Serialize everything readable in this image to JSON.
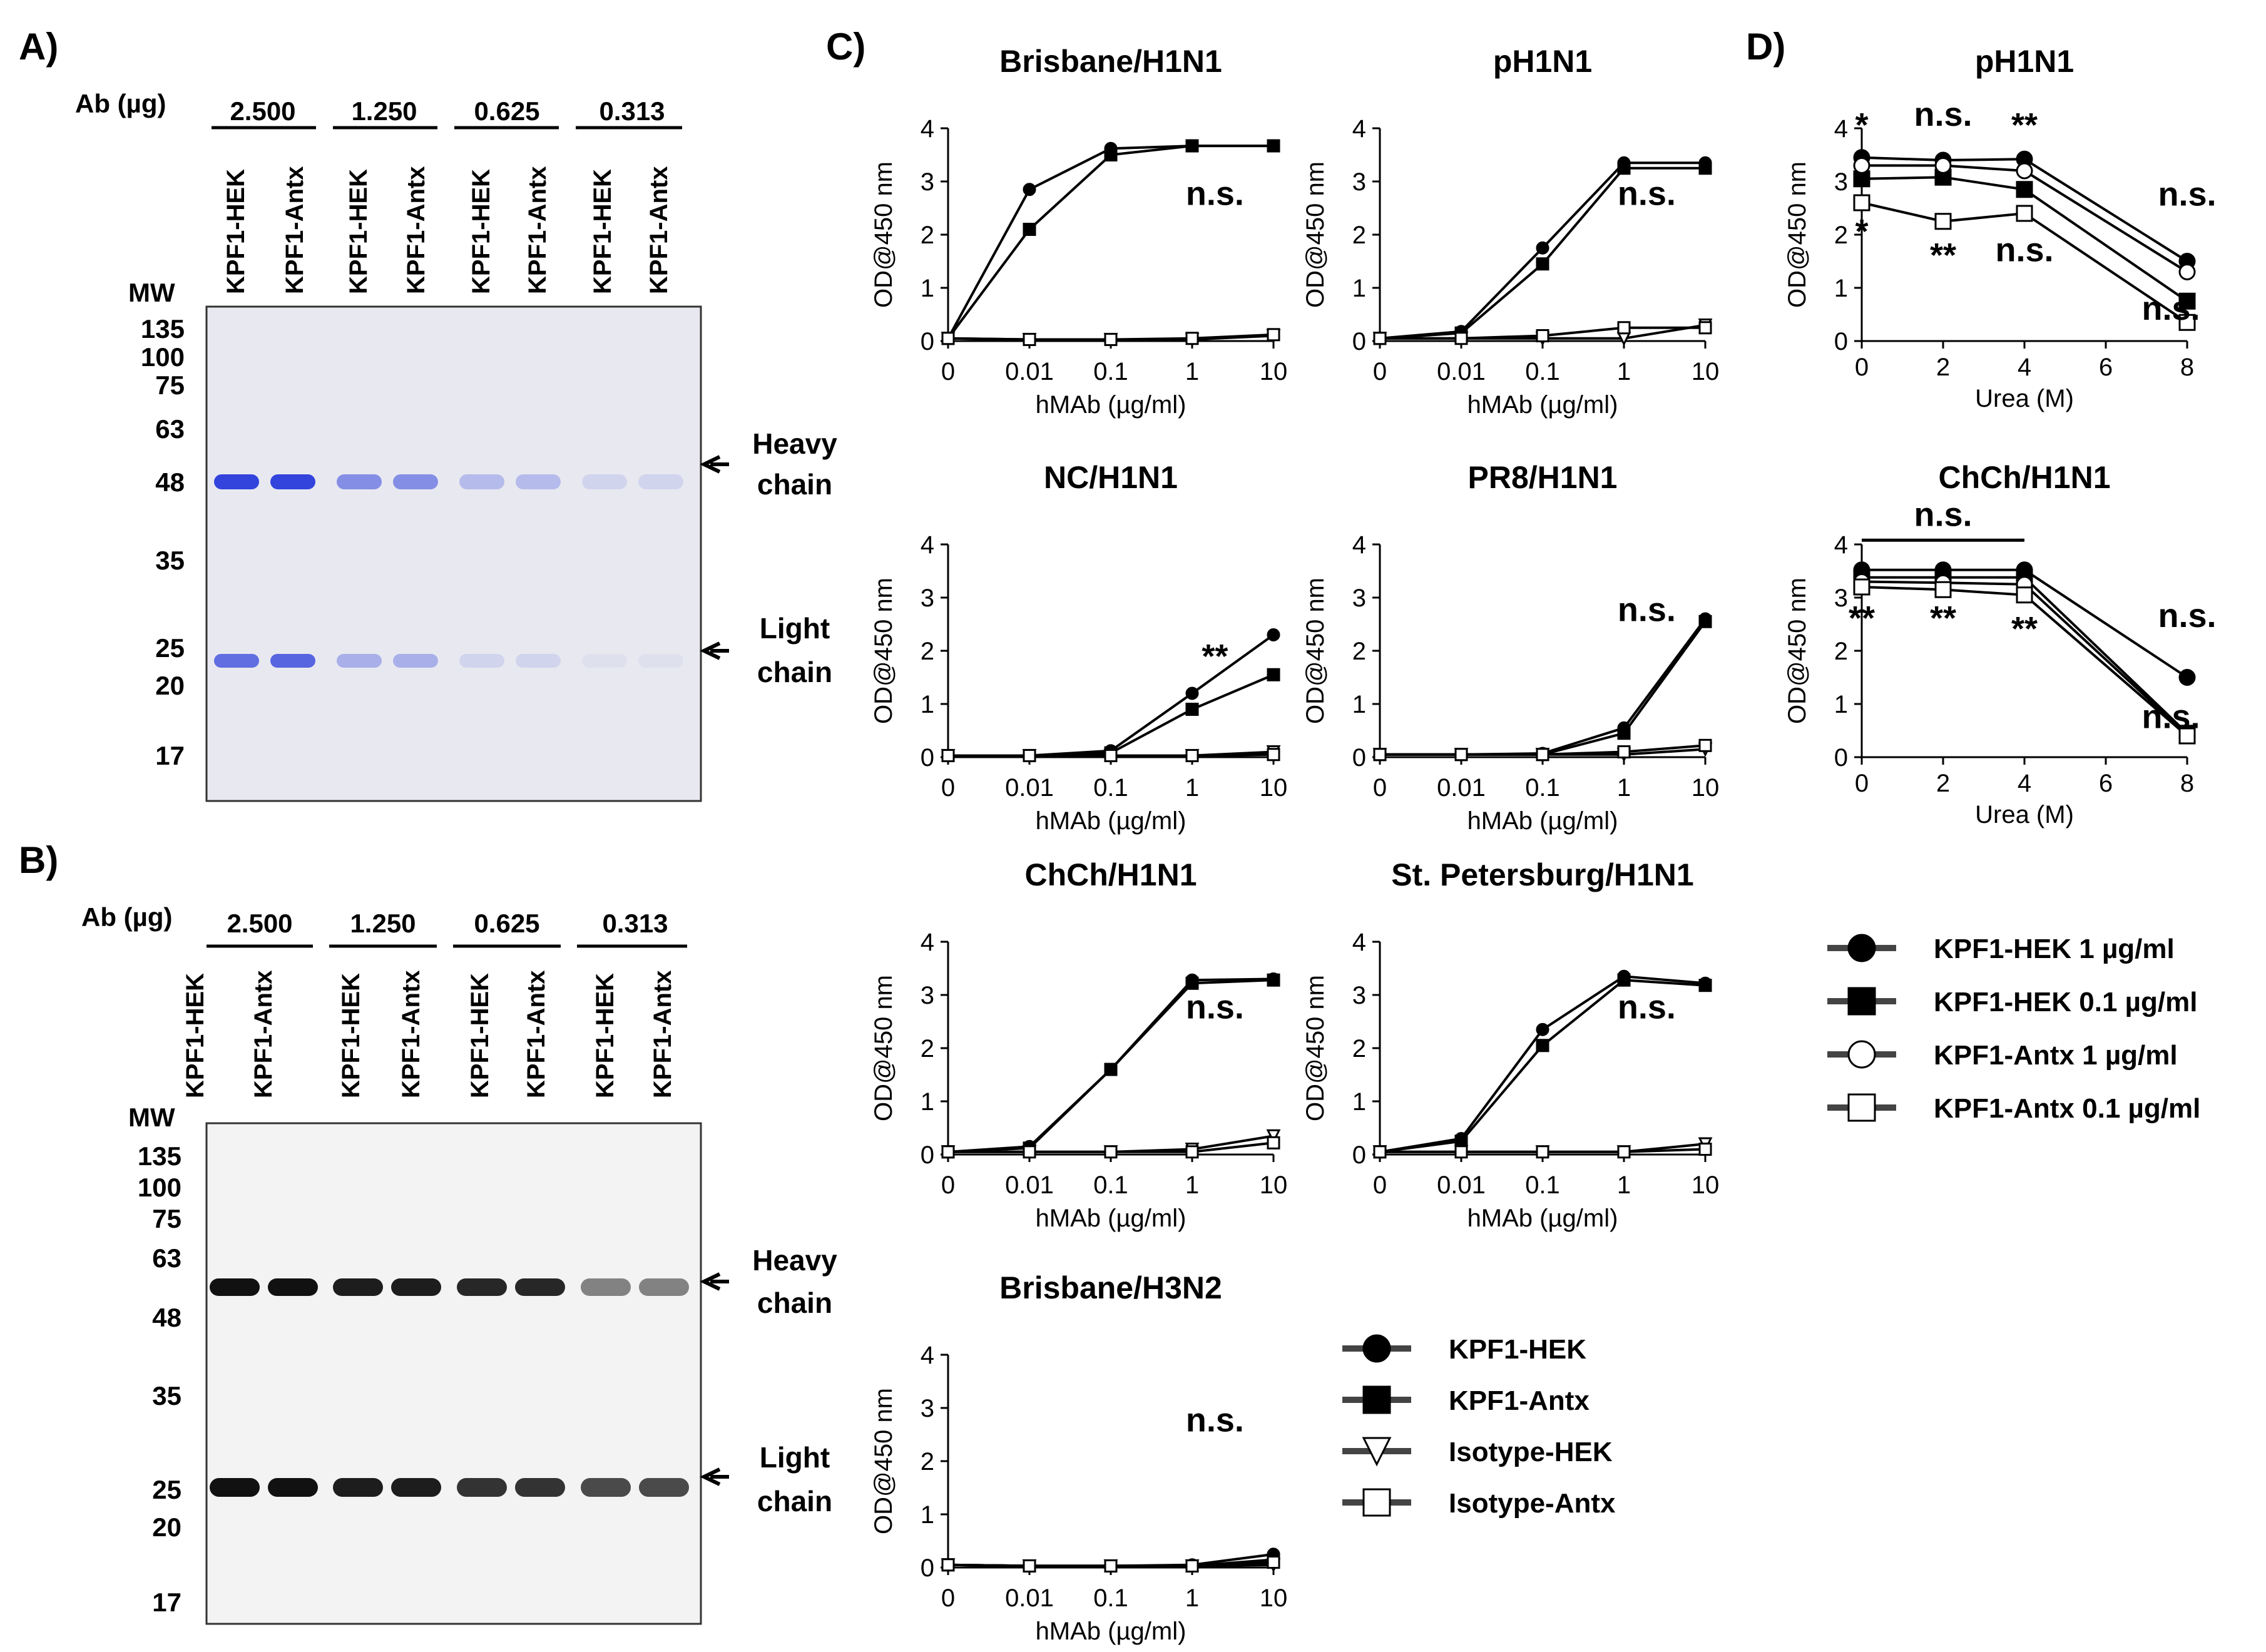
{
  "panel_labels": {
    "a": "A)",
    "b": "B)",
    "c": "C)",
    "d": "D)"
  },
  "gel_common": {
    "ab_label": "Ab (µg)",
    "mw_label": "MW",
    "doses": [
      "2.500",
      "1.250",
      "0.625",
      "0.313"
    ],
    "lanes": [
      "KPF1-HEK",
      "KPF1-Antx",
      "KPF1-HEK",
      "KPF1-Antx",
      "KPF1-HEK",
      "KPF1-Antx",
      "KPF1-HEK",
      "KPF1-Antx"
    ],
    "mw_markers": [
      "135",
      "100",
      "75",
      "63",
      "48",
      "35",
      "25",
      "20",
      "17"
    ],
    "heavy_label_1": "Heavy",
    "heavy_label_2": "chain",
    "light_label_1": "Light",
    "light_label_2": "chain"
  },
  "gel_a": {
    "band_color": "#3344dd",
    "bg_color": "#e8e9f0",
    "heavy_intensity": [
      1.0,
      1.0,
      0.55,
      0.55,
      0.28,
      0.28,
      0.12,
      0.12
    ],
    "light_intensity": [
      0.75,
      0.8,
      0.35,
      0.35,
      0.12,
      0.12,
      0.05,
      0.05
    ]
  },
  "gel_b": {
    "band_color": "#111111",
    "bg_color": "#f3f3f3",
    "heavy_intensity": [
      1.0,
      1.0,
      0.95,
      0.95,
      0.9,
      0.9,
      0.5,
      0.5
    ],
    "light_intensity": [
      1.0,
      1.0,
      0.95,
      0.95,
      0.85,
      0.85,
      0.75,
      0.75
    ]
  },
  "axis_common": {
    "ylabel": "OD@450 nm",
    "xlabel_c": "hMAb (µg/ml)",
    "xlabel_d": "Urea (M)",
    "x_ticks_c": [
      "0",
      "0.01",
      "0.1",
      "1",
      "10"
    ],
    "y_ticks": [
      "0",
      "1",
      "2",
      "3",
      "4"
    ],
    "x_ticks_d": [
      "0",
      "2",
      "4",
      "6",
      "8"
    ]
  },
  "chart_data": [
    {
      "type": "line",
      "title": "Brisbane/H1N1",
      "xlabel": "hMAb (µg/ml)",
      "ylabel": "OD@450 nm",
      "categories": [
        "0",
        "0.01",
        "0.1",
        "1",
        "10"
      ],
      "ylim": [
        0,
        4
      ],
      "series": [
        {
          "name": "KPF1-HEK",
          "values": [
            0.05,
            2.85,
            3.62,
            3.67,
            3.67
          ]
        },
        {
          "name": "KPF1-Antx",
          "values": [
            0.05,
            2.1,
            3.5,
            3.67,
            3.67
          ]
        },
        {
          "name": "Isotype-HEK",
          "values": [
            0.05,
            0.03,
            0.03,
            0.03,
            0.1
          ]
        },
        {
          "name": "Isotype-Antx",
          "values": [
            0.05,
            0.03,
            0.03,
            0.05,
            0.12
          ]
        }
      ],
      "annotations": [
        {
          "text": "n.s."
        }
      ]
    },
    {
      "type": "line",
      "title": "pH1N1",
      "xlabel": "hMAb (µg/ml)",
      "ylabel": "OD@450 nm",
      "categories": [
        "0",
        "0.01",
        "0.1",
        "1",
        "10"
      ],
      "ylim": [
        0,
        4
      ],
      "series": [
        {
          "name": "KPF1-HEK",
          "values": [
            0.05,
            0.18,
            1.75,
            3.35,
            3.35
          ]
        },
        {
          "name": "KPF1-Antx",
          "values": [
            0.05,
            0.15,
            1.45,
            3.25,
            3.25
          ]
        },
        {
          "name": "Isotype-HEK",
          "values": [
            0.05,
            0.05,
            0.05,
            0.05,
            0.3
          ]
        },
        {
          "name": "Isotype-Antx",
          "values": [
            0.05,
            0.05,
            0.1,
            0.25,
            0.25
          ]
        }
      ],
      "annotations": [
        {
          "text": "n.s."
        }
      ]
    },
    {
      "type": "line",
      "title": "NC/H1N1",
      "xlabel": "hMAb (µg/ml)",
      "ylabel": "OD@450 nm",
      "categories": [
        "0",
        "0.01",
        "0.1",
        "1",
        "10"
      ],
      "ylim": [
        0,
        4
      ],
      "series": [
        {
          "name": "KPF1-HEK",
          "values": [
            0.03,
            0.03,
            0.12,
            1.2,
            2.3
          ]
        },
        {
          "name": "KPF1-Antx",
          "values": [
            0.03,
            0.03,
            0.08,
            0.9,
            1.55
          ]
        },
        {
          "name": "Isotype-HEK",
          "values": [
            0.03,
            0.03,
            0.03,
            0.03,
            0.1
          ]
        },
        {
          "name": "Isotype-Antx",
          "values": [
            0.03,
            0.03,
            0.03,
            0.03,
            0.05
          ]
        }
      ],
      "annotations": [
        {
          "text": "**"
        }
      ]
    },
    {
      "type": "line",
      "title": "PR8/H1N1",
      "xlabel": "hMAb (µg/ml)",
      "ylabel": "OD@450 nm",
      "categories": [
        "0",
        "0.01",
        "0.1",
        "1",
        "10"
      ],
      "ylim": [
        0,
        4
      ],
      "series": [
        {
          "name": "KPF1-HEK",
          "values": [
            0.05,
            0.05,
            0.07,
            0.55,
            2.6
          ]
        },
        {
          "name": "KPF1-Antx",
          "values": [
            0.05,
            0.05,
            0.05,
            0.45,
            2.55
          ]
        },
        {
          "name": "Isotype-HEK",
          "values": [
            0.05,
            0.05,
            0.05,
            0.05,
            0.15
          ]
        },
        {
          "name": "Isotype-Antx",
          "values": [
            0.05,
            0.05,
            0.05,
            0.1,
            0.22
          ]
        }
      ],
      "annotations": [
        {
          "text": "n.s."
        }
      ]
    },
    {
      "type": "line",
      "title": "ChCh/H1N1",
      "xlabel": "hMAb (µg/ml)",
      "ylabel": "OD@450 nm",
      "categories": [
        "0",
        "0.01",
        "0.1",
        "1",
        "10"
      ],
      "ylim": [
        0,
        4
      ],
      "series": [
        {
          "name": "KPF1-HEK",
          "values": [
            0.05,
            0.15,
            1.6,
            3.28,
            3.3
          ]
        },
        {
          "name": "KPF1-Antx",
          "values": [
            0.05,
            0.12,
            1.6,
            3.22,
            3.28
          ]
        },
        {
          "name": "Isotype-HEK",
          "values": [
            0.05,
            0.05,
            0.05,
            0.1,
            0.35
          ]
        },
        {
          "name": "Isotype-Antx",
          "values": [
            0.05,
            0.05,
            0.05,
            0.05,
            0.22
          ]
        }
      ],
      "annotations": [
        {
          "text": "n.s."
        }
      ]
    },
    {
      "type": "line",
      "title": "St. Petersburg/H1N1",
      "xlabel": "hMAb (µg/ml)",
      "ylabel": "OD@450 nm",
      "categories": [
        "0",
        "0.01",
        "0.1",
        "1",
        "10"
      ],
      "ylim": [
        0,
        4
      ],
      "series": [
        {
          "name": "KPF1-HEK",
          "values": [
            0.05,
            0.3,
            2.35,
            3.35,
            3.22
          ]
        },
        {
          "name": "KPF1-Antx",
          "values": [
            0.05,
            0.25,
            2.05,
            3.28,
            3.18
          ]
        },
        {
          "name": "Isotype-HEK",
          "values": [
            0.05,
            0.05,
            0.05,
            0.05,
            0.2
          ]
        },
        {
          "name": "Isotype-Antx",
          "values": [
            0.05,
            0.05,
            0.05,
            0.05,
            0.1
          ]
        }
      ],
      "annotations": [
        {
          "text": "n.s."
        }
      ]
    },
    {
      "type": "line",
      "title": "Brisbane/H3N2",
      "xlabel": "hMAb (µg/ml)",
      "ylabel": "OD@450 nm",
      "categories": [
        "0",
        "0.01",
        "0.1",
        "1",
        "10"
      ],
      "ylim": [
        0,
        4
      ],
      "series": [
        {
          "name": "KPF1-HEK",
          "values": [
            0.05,
            0.03,
            0.03,
            0.05,
            0.25
          ]
        },
        {
          "name": "KPF1-Antx",
          "values": [
            0.05,
            0.03,
            0.03,
            0.03,
            0.15
          ]
        },
        {
          "name": "Isotype-HEK",
          "values": [
            0.05,
            0.03,
            0.03,
            0.03,
            0.05
          ]
        },
        {
          "name": "Isotype-Antx",
          "values": [
            0.05,
            0.03,
            0.03,
            0.03,
            0.1
          ]
        }
      ],
      "annotations": [
        {
          "text": "n.s."
        }
      ]
    },
    {
      "type": "line",
      "title": "pH1N1",
      "xlabel": "Urea (M)",
      "ylabel": "OD@450 nm",
      "x": [
        0,
        2,
        4,
        8
      ],
      "xlim": [
        0,
        8
      ],
      "ylim": [
        0,
        4
      ],
      "series": [
        {
          "name": "KPF1-HEK 1 µg/ml",
          "values": [
            3.45,
            3.4,
            3.42,
            1.5
          ]
        },
        {
          "name": "KPF1-HEK 0.1 µg/ml",
          "values": [
            3.05,
            3.08,
            2.85,
            0.75
          ]
        },
        {
          "name": "KPF1-Antx 1 µg/ml",
          "values": [
            3.3,
            3.3,
            3.2,
            1.3
          ]
        },
        {
          "name": "KPF1-Antx 0.1 µg/ml",
          "values": [
            2.6,
            2.25,
            2.4,
            0.35
          ]
        }
      ],
      "annotations": [
        {
          "text": "*",
          "x": 0,
          "y": 3.85
        },
        {
          "text": "n.s.",
          "x": 2,
          "y": 4.05
        },
        {
          "text": "**",
          "x": 4,
          "y": 3.85
        },
        {
          "text": "n.s.",
          "x": 8,
          "y": 2.55
        },
        {
          "text": "*",
          "x": 0,
          "y": 1.85
        },
        {
          "text": "**",
          "x": 2,
          "y": 1.4
        },
        {
          "text": "n.s.",
          "x": 4,
          "y": 1.5
        },
        {
          "text": "n.s.",
          "x": 7.6,
          "y": 0.4
        }
      ]
    },
    {
      "type": "line",
      "title": "ChCh/H1N1",
      "xlabel": "Urea (M)",
      "ylabel": "OD@450 nm",
      "x": [
        0,
        2,
        4,
        8
      ],
      "xlim": [
        0,
        8
      ],
      "ylim": [
        0,
        4
      ],
      "series": [
        {
          "name": "KPF1-HEK 1 µg/ml",
          "values": [
            3.52,
            3.52,
            3.52,
            1.5
          ]
        },
        {
          "name": "KPF1-HEK 0.1 µg/ml",
          "values": [
            3.38,
            3.38,
            3.38,
            0.45
          ]
        },
        {
          "name": "KPF1-Antx 1 µg/ml",
          "values": [
            3.3,
            3.28,
            3.25,
            0.42
          ]
        },
        {
          "name": "KPF1-Antx 0.1 µg/ml",
          "values": [
            3.2,
            3.15,
            3.05,
            0.4
          ]
        }
      ],
      "annotations": [
        {
          "text": "n.s.",
          "x": 2,
          "y": 4.35
        },
        {
          "text": "**",
          "x": 0,
          "y": 2.4
        },
        {
          "text": "**",
          "x": 2,
          "y": 2.4
        },
        {
          "text": "**",
          "x": 4,
          "y": 2.2
        },
        {
          "text": "n.s.",
          "x": 8,
          "y": 2.45
        },
        {
          "text": "n.s.",
          "x": 7.6,
          "y": 0.55
        }
      ]
    }
  ],
  "legend_c": [
    "KPF1-HEK",
    "KPF1-Antx",
    "Isotype-HEK",
    "Isotype-Antx"
  ],
  "legend_d": [
    "KPF1-HEK 1 µg/ml",
    "KPF1-HEK 0.1 µg/ml",
    "KPF1-Antx 1 µg/ml",
    "KPF1-Antx 0.1 µg/ml"
  ]
}
